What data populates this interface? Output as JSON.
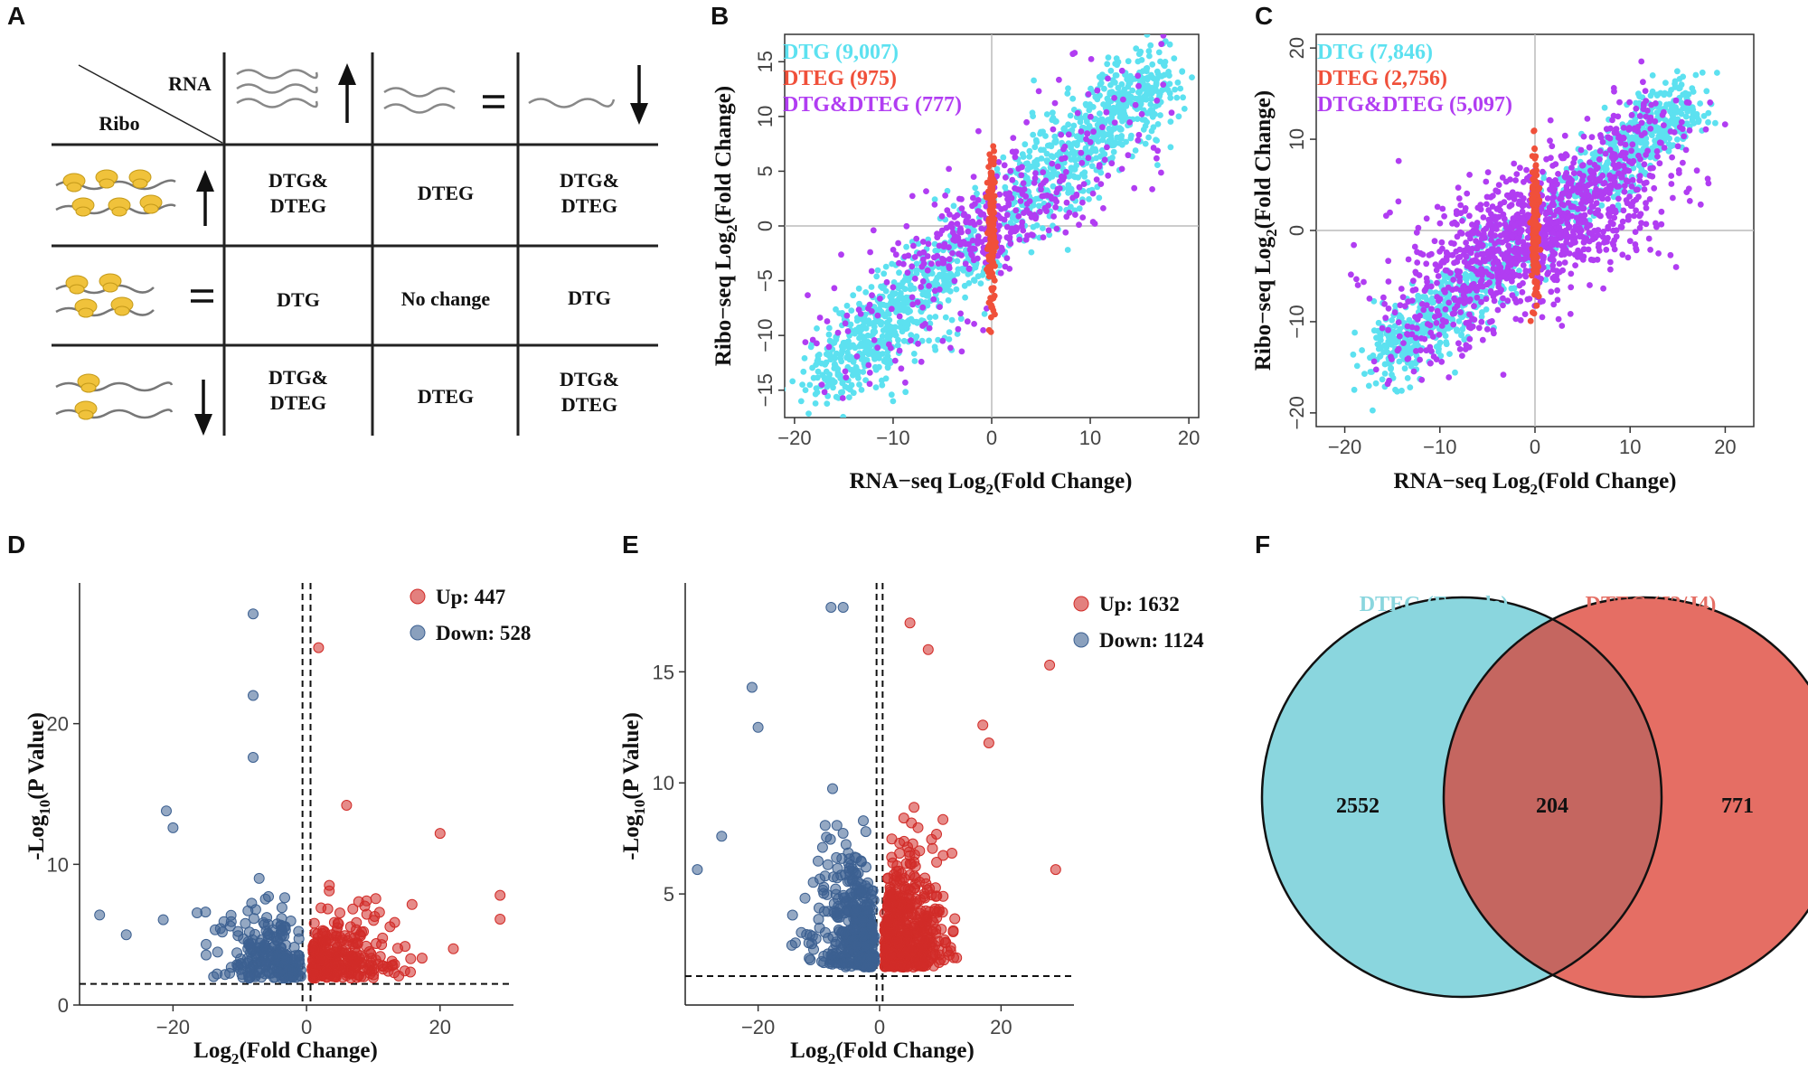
{
  "figure": {
    "panel_labels": [
      "A",
      "B",
      "C",
      "D",
      "E",
      "F"
    ],
    "colors": {
      "dtg": "#5ce1f0",
      "dteg": "#f0503a",
      "both": "#b13df2",
      "up": "#d12c28",
      "down": "#3c6091",
      "venn_left": "#8ad6de",
      "venn_right": "#e56e64",
      "venn_overlap": "#c56660"
    }
  },
  "panel_a": {
    "header_rna": "RNA",
    "header_ribo": "Ribo",
    "icons": [
      "rna-up-icon",
      "rna-equal-icon",
      "rna-down-icon",
      "ribo-up-icon",
      "ribo-equal-icon",
      "ribo-down-icon"
    ],
    "rows": [
      [
        "DTG&\nDTEG",
        "DTEG",
        "DTG&\nDTEG"
      ],
      [
        "DTG",
        "No change",
        "DTG"
      ],
      [
        "DTG&\nDTEG",
        "DTEG",
        "DTG&\nDTEG"
      ]
    ]
  },
  "chart_data": [
    {
      "id": "B",
      "type": "scatter",
      "xlabel": "RNA−seq Log2(Fold Change)",
      "ylabel": "Ribo−seq Log2(Fold Change)",
      "xlim": [
        -21,
        21
      ],
      "ylim": [
        -17.5,
        17.5
      ],
      "xticks": [
        -20,
        -10,
        0,
        10,
        20
      ],
      "yticks": [
        -15,
        -10,
        -5,
        0,
        5,
        10,
        15
      ],
      "legend": [
        {
          "label": "DTG (9,007)",
          "color": "#5ce1f0"
        },
        {
          "label": "DTEG (975)",
          "color": "#f0503a"
        },
        {
          "label": "DTG&DTEG (777)",
          "color": "#b13df2"
        }
      ],
      "series": [
        {
          "name": "DTG",
          "count": 9007,
          "shape": "diagonal band from (-19,-17) to (17,13)"
        },
        {
          "name": "DTG&DTEG",
          "count": 777,
          "shape": "mixed, around center"
        },
        {
          "name": "DTEG",
          "count": 975,
          "shape": "vertical strip at x≈0, y from -10 to 10"
        }
      ]
    },
    {
      "id": "C",
      "type": "scatter",
      "xlabel": "RNA−seq Log2(Fold Change)",
      "ylabel": "Ribo−seq Log2(Fold Change)",
      "xlim": [
        -23,
        23
      ],
      "ylim": [
        -21.5,
        21.5
      ],
      "xticks": [
        -20,
        -10,
        0,
        10,
        20
      ],
      "yticks": [
        -20,
        -10,
        0,
        10,
        20
      ],
      "legend": [
        {
          "label": "DTG (7,846)",
          "color": "#5ce1f0"
        },
        {
          "label": "DTEG (2,756)",
          "color": "#f0503a"
        },
        {
          "label": "DTG&DTEG (5,097)",
          "color": "#b13df2"
        }
      ],
      "series": [
        {
          "name": "DTG",
          "count": 7846,
          "shape": "diagonal band from (-14,-14) to (17,16)"
        },
        {
          "name": "DTG&DTEG",
          "count": 5097,
          "shape": "broad cloud around center"
        },
        {
          "name": "DTEG",
          "count": 2756,
          "shape": "vertical strip at x≈0, y from -11 to 12"
        }
      ]
    },
    {
      "id": "D",
      "type": "scatter",
      "subtype": "volcano",
      "xlabel": "Log2(Fold Change)",
      "ylabel": "-Log10(P Value)",
      "xlim": [
        -34,
        31
      ],
      "ylim": [
        0,
        30
      ],
      "xticks": [
        -20,
        0,
        20
      ],
      "yticks": [
        0,
        10,
        20
      ],
      "thresholds": {
        "x": [
          -0.6,
          0.6
        ],
        "y": 1.5
      },
      "legend": [
        {
          "label": "Up: 447",
          "color": "#d12c28"
        },
        {
          "label": "Down: 528",
          "color": "#3c6091"
        }
      ],
      "series": [
        {
          "name": "Up",
          "count": 447,
          "outliers": [
            [
              1.8,
              25.4
            ],
            [
              6,
              14.2
            ],
            [
              20,
              12.2
            ],
            [
              29,
              7.8
            ],
            [
              29,
              6.1
            ],
            [
              22,
              4
            ]
          ]
        },
        {
          "name": "Down",
          "count": 528,
          "outliers": [
            [
              -8,
              27.8
            ],
            [
              -8,
              22
            ],
            [
              -8,
              17.6
            ],
            [
              -21,
              13.8
            ],
            [
              -20,
              12.6
            ],
            [
              -31,
              6.4
            ],
            [
              -27,
              5
            ]
          ]
        }
      ]
    },
    {
      "id": "E",
      "type": "scatter",
      "subtype": "volcano",
      "xlabel": "Log2(Fold Change)",
      "ylabel": "-Log10(P Value)",
      "xlim": [
        -32,
        32
      ],
      "ylim": [
        0,
        19
      ],
      "xticks": [
        -20,
        0,
        20
      ],
      "yticks": [
        5,
        10,
        15
      ],
      "thresholds": {
        "x": [
          -0.5,
          0.5
        ],
        "y": 1.3
      },
      "legend": [
        {
          "label": "Up: 1632",
          "color": "#d12c28"
        },
        {
          "label": "Down: 1124",
          "color": "#3c6091"
        }
      ],
      "series": [
        {
          "name": "Up",
          "count": 1632,
          "outliers": [
            [
              28,
              15.3
            ],
            [
              17,
              12.6
            ],
            [
              18,
              11.8
            ],
            [
              29,
              6.1
            ],
            [
              8,
              16
            ],
            [
              5,
              17.2
            ]
          ]
        },
        {
          "name": "Down",
          "count": 1124,
          "outliers": [
            [
              -21,
              14.3
            ],
            [
              -20,
              12.5
            ],
            [
              -30,
              6.1
            ],
            [
              -26,
              7.6
            ],
            [
              -8,
              17.9
            ],
            [
              -6,
              17.9
            ]
          ]
        }
      ]
    },
    {
      "id": "F",
      "type": "venn",
      "sets": [
        {
          "label": "DTEG (Female)",
          "only": 2552,
          "color": "#8ad6de"
        },
        {
          "label": "DTEG (J3/J4)",
          "only": 771,
          "color": "#e56e64"
        }
      ],
      "intersection": 204
    }
  ]
}
